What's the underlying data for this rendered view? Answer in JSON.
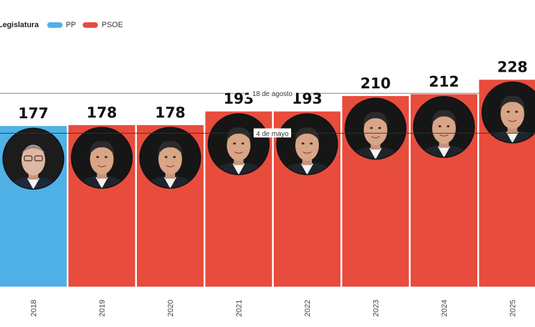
{
  "legend": {
    "title": "Legislatura",
    "items": [
      {
        "label": "PP",
        "color": "#4fb1e6"
      },
      {
        "label": "PSOE",
        "color": "#e84c3d"
      }
    ]
  },
  "chart_data": {
    "type": "bar",
    "title": "",
    "xlabel": "",
    "ylabel": "",
    "categories": [
      "2018",
      "2019",
      "2020",
      "2021",
      "2022",
      "2023",
      "2024",
      "2025"
    ],
    "values": [
      177,
      178,
      178,
      193,
      193,
      210,
      212,
      228
    ],
    "party": [
      "PP",
      "PSOE",
      "PSOE",
      "PSOE",
      "PSOE",
      "PSOE",
      "PSOE",
      "PSOE"
    ],
    "portraits": [
      "mariano-rajoy-portrait",
      "pedro-sanchez-portrait",
      "pedro-sanchez-portrait",
      "pedro-sanchez-portrait",
      "pedro-sanchez-portrait",
      "pedro-sanchez-portrait",
      "pedro-sanchez-portrait",
      "pedro-sanchez-portrait"
    ],
    "ylim": [
      0,
      250
    ],
    "annotations": [
      {
        "label": "18 de agosto",
        "value": 213
      },
      {
        "label": "4 de mayo",
        "value": 169
      }
    ]
  }
}
